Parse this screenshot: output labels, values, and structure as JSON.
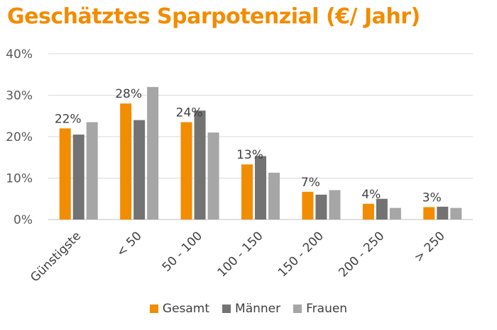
{
  "chart_data": {
    "type": "bar",
    "title": "Geschätztes Sparpotenzial (€/ Jahr)",
    "categories": [
      "Günstigste",
      "< 50",
      "50 - 100",
      "100 - 150",
      "150 - 200",
      "200 - 250",
      "> 250"
    ],
    "series": [
      {
        "name": "Gesamt",
        "color": "#f28c00",
        "values": [
          22,
          28,
          23.5,
          13.3,
          6.7,
          3.8,
          3.0
        ]
      },
      {
        "name": "Männer",
        "color": "#737373",
        "values": [
          20.5,
          24,
          26.3,
          15.3,
          6.0,
          5.0,
          3.1
        ]
      },
      {
        "name": "Frauen",
        "color": "#a6a6a6",
        "values": [
          23.5,
          32,
          21,
          11.3,
          7.1,
          2.8,
          2.8
        ]
      }
    ],
    "data_labels": [
      "22%",
      "28%",
      "24%",
      "13%",
      "7%",
      "4%",
      "3%"
    ],
    "ylim": [
      0,
      40
    ],
    "yticks": [
      0,
      10,
      20,
      30,
      40
    ],
    "ytick_labels": [
      "0%",
      "10%",
      "20%",
      "30%",
      "40%"
    ],
    "grid": true,
    "legend_position": "bottom"
  }
}
